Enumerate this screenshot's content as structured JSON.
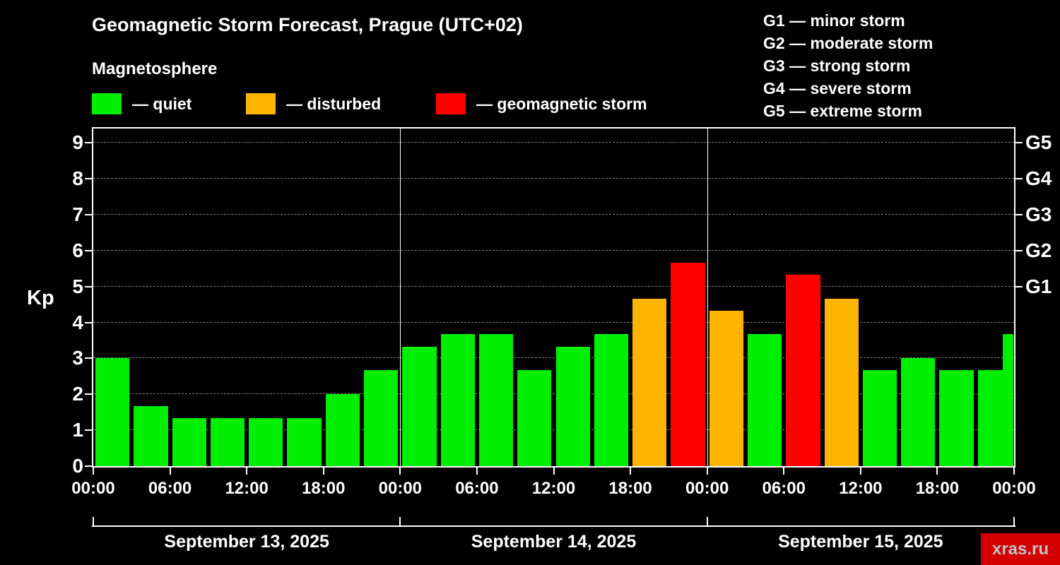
{
  "header": {
    "title": "Geomagnetic Storm Forecast, Prague (UTC+02)",
    "subtitle": "Magnetosphere"
  },
  "watermark": "xras.ru",
  "g_legend": [
    "G1 — minor storm",
    "G2 — moderate storm",
    "G3 — strong storm",
    "G4 — severe storm",
    "G5 — extreme storm"
  ],
  "chart_data": {
    "type": "bar",
    "title": "Geomagnetic Storm Forecast, Prague (UTC+02)",
    "ylabel": "Kp",
    "ylim": [
      0,
      9.4
    ],
    "grid": true,
    "y_ticks": [
      "0",
      "1",
      "2",
      "3",
      "4",
      "5",
      "6",
      "7",
      "8",
      "9"
    ],
    "right_axis_ticks": [
      {
        "label": "G1",
        "kp": 5
      },
      {
        "label": "G2",
        "kp": 6
      },
      {
        "label": "G3",
        "kp": 7
      },
      {
        "label": "G4",
        "kp": 8
      },
      {
        "label": "G5",
        "kp": 9
      }
    ],
    "hours_per_bar": 3,
    "x_tick_labels": [
      "00:00",
      "06:00",
      "12:00",
      "18:00",
      "00:00",
      "06:00",
      "12:00",
      "18:00",
      "00:00",
      "06:00",
      "12:00",
      "18:00",
      "00:00"
    ],
    "days": [
      "September 13, 2025",
      "September 14, 2025",
      "September 15, 2025"
    ],
    "legend_items": [
      {
        "status": "quiet",
        "label": "— quiet"
      },
      {
        "status": "disturbed",
        "label": "— disturbed"
      },
      {
        "status": "storm",
        "label": "— geomagnetic storm"
      }
    ],
    "status_colors": {
      "quiet": "#00ee00",
      "disturbed": "#ffb400",
      "storm": "#ff0000"
    },
    "series": [
      {
        "kp": 3.0,
        "status": "quiet"
      },
      {
        "kp": 1.67,
        "status": "quiet"
      },
      {
        "kp": 1.33,
        "status": "quiet"
      },
      {
        "kp": 1.33,
        "status": "quiet"
      },
      {
        "kp": 1.33,
        "status": "quiet"
      },
      {
        "kp": 1.33,
        "status": "quiet"
      },
      {
        "kp": 2.0,
        "status": "quiet"
      },
      {
        "kp": 2.67,
        "status": "quiet"
      },
      {
        "kp": 3.33,
        "status": "quiet"
      },
      {
        "kp": 3.67,
        "status": "quiet"
      },
      {
        "kp": 3.67,
        "status": "quiet"
      },
      {
        "kp": 2.67,
        "status": "quiet"
      },
      {
        "kp": 3.33,
        "status": "quiet"
      },
      {
        "kp": 3.67,
        "status": "quiet"
      },
      {
        "kp": 4.67,
        "status": "disturbed"
      },
      {
        "kp": 5.67,
        "status": "storm"
      },
      {
        "kp": 4.33,
        "status": "disturbed"
      },
      {
        "kp": 3.67,
        "status": "quiet"
      },
      {
        "kp": 5.33,
        "status": "storm"
      },
      {
        "kp": 4.67,
        "status": "disturbed"
      },
      {
        "kp": 2.67,
        "status": "quiet"
      },
      {
        "kp": 3.0,
        "status": "quiet"
      },
      {
        "kp": 2.67,
        "status": "quiet"
      },
      {
        "kp": 2.67,
        "status": "quiet"
      }
    ],
    "partial_next_bar": {
      "kp": 3.67,
      "status": "quiet"
    }
  }
}
